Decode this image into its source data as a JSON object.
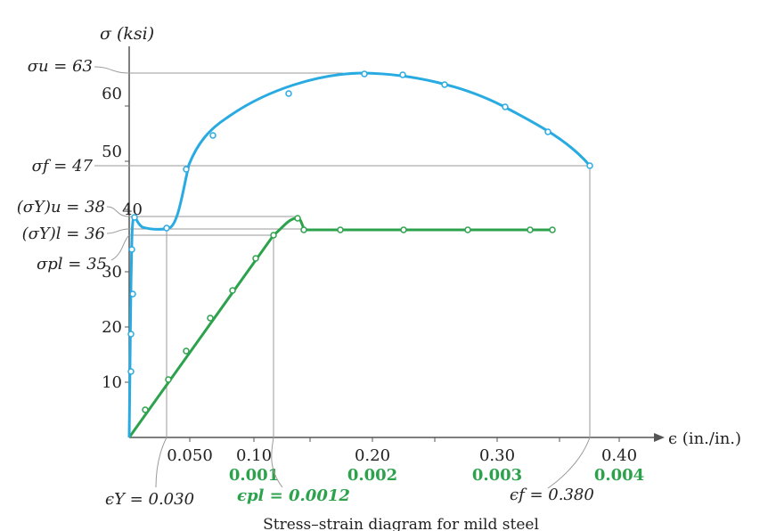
{
  "chart_data": {
    "type": "line",
    "title": "",
    "caption": "Stress–strain diagram for mild steel",
    "xlabel": "ϵ (in./in.)",
    "ylabel": "σ (ksi)",
    "ylim": [
      0,
      70
    ],
    "y_ticks": [
      "10",
      "20",
      "30",
      "40",
      "50",
      "60"
    ],
    "x_axis_upper": {
      "label": "ϵ (in./in.)",
      "range": [
        0,
        0.42
      ],
      "ticks": [
        {
          "value": 0.05,
          "label": "0.050"
        },
        {
          "value": 0.1,
          "label": "0.10"
        },
        {
          "value": 0.2,
          "label": "0.20"
        },
        {
          "value": 0.3,
          "label": "0.30"
        },
        {
          "value": 0.4,
          "label": "0.40"
        }
      ]
    },
    "x_axis_lower": {
      "range": [
        0,
        0.0042
      ],
      "ticks": [
        {
          "value": 0.001,
          "label": "0.001"
        },
        {
          "value": 0.002,
          "label": "0.002"
        },
        {
          "value": 0.003,
          "label": "0.003"
        },
        {
          "value": 0.004,
          "label": "0.004"
        }
      ]
    },
    "colors": {
      "full_curve": "#29abe2",
      "elastic_curve": "#2ca24c",
      "axis": "#555555",
      "guide": "#9a9a9a"
    },
    "series": [
      {
        "key": "full",
        "x_axis": "upper",
        "points": [
          [
            0,
            0
          ],
          [
            0.002,
            11.5
          ],
          [
            0.002,
            18
          ],
          [
            0.003,
            24.5
          ],
          [
            0.003,
            33
          ],
          [
            0.005,
            38
          ],
          [
            0.046,
            36
          ],
          [
            0.076,
            46.5
          ],
          [
            0.105,
            52.3
          ],
          [
            0.157,
            59.5
          ],
          [
            0.226,
            63
          ],
          [
            0.262,
            62.7
          ],
          [
            0.298,
            61
          ],
          [
            0.337,
            57.3
          ],
          [
            0.372,
            53
          ],
          [
            0.38,
            47
          ]
        ]
      },
      {
        "key": "elastic",
        "x_axis": "lower",
        "points": [
          [
            0,
            0
          ],
          [
            0.0002,
            5
          ],
          [
            0.0005,
            10
          ],
          [
            0.00075,
            15
          ],
          [
            0.001,
            20.5
          ],
          [
            0.00105,
            25.5
          ],
          [
            0.00133,
            31
          ],
          [
            0.0012,
            35
          ],
          [
            0.0014,
            38
          ],
          [
            0.00141,
            36
          ],
          [
            0.00175,
            36
          ],
          [
            0.0022,
            36
          ],
          [
            0.0027,
            36
          ],
          [
            0.00315,
            36
          ],
          [
            0.0033,
            36
          ]
        ]
      }
    ],
    "annotations": {
      "sigma_u": "σu = 63",
      "sigma_f": "σf = 47",
      "sigma_yu": "(σY)u = 38",
      "sigma_yl": "(σY)l = 36",
      "sigma_pl": "σpl = 35",
      "eps_y": "ϵY = 0.030",
      "eps_pl": "ϵpl = 0.0012",
      "eps_f": "ϵf = 0.380"
    }
  }
}
